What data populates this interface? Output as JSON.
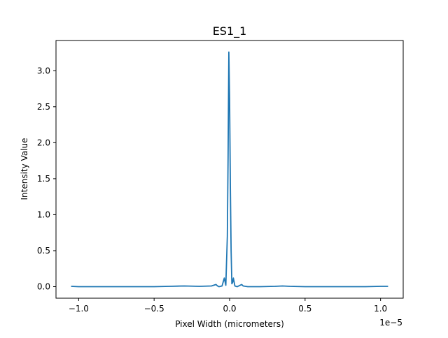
{
  "chart_data": {
    "type": "line",
    "title": "ES1_1",
    "xlabel": "Pixel Width (micrometers)",
    "ylabel": "Intensity Value",
    "x_offset_text": "1e−5",
    "xlim": [
      -1.15e-05,
      1.15e-05
    ],
    "ylim": [
      -0.16,
      3.42
    ],
    "x_ticks": [
      {
        "value": -1e-05,
        "label": "−1.0"
      },
      {
        "value": -5e-06,
        "label": "−0.5"
      },
      {
        "value": 0.0,
        "label": "0.0"
      },
      {
        "value": 5e-06,
        "label": "0.5"
      },
      {
        "value": 1e-05,
        "label": "1.0"
      }
    ],
    "y_ticks": [
      {
        "value": 0.0,
        "label": "0.0"
      },
      {
        "value": 0.5,
        "label": "0.5"
      },
      {
        "value": 1.0,
        "label": "1.0"
      },
      {
        "value": 1.5,
        "label": "1.5"
      },
      {
        "value": 2.0,
        "label": "2.0"
      },
      {
        "value": 2.5,
        "label": "2.5"
      },
      {
        "value": 3.0,
        "label": "3.0"
      }
    ],
    "grid": false,
    "series": [
      {
        "color": "#1f77b4",
        "x": [
          -1.05e-05,
          -1e-05,
          -9e-06,
          -8e-06,
          -7e-06,
          -6e-06,
          -5e-06,
          -4e-06,
          -3e-06,
          -2e-06,
          -1.2e-06,
          -9e-07,
          -8e-07,
          -7e-07,
          -5e-07,
          -3.5e-07,
          -2.5e-07,
          -1.5e-07,
          -1e-07,
          -5e-08,
          0.0,
          5e-08,
          1e-07,
          1.5e-07,
          2e-07,
          2.5e-07,
          3.5e-07,
          5e-07,
          7e-07,
          8e-07,
          9e-07,
          1.2e-06,
          2e-06,
          3e-06,
          3.5e-06,
          4e-06,
          5e-06,
          6e-06,
          7e-06,
          8e-06,
          9e-06,
          1e-05,
          1.05e-05
        ],
        "y": [
          0.005,
          0.0,
          0.0,
          0.0,
          0.0,
          0.0,
          0.0,
          0.005,
          0.01,
          0.005,
          0.01,
          0.03,
          0.01,
          0.0,
          0.01,
          0.12,
          0.02,
          0.7,
          1.8,
          3.26,
          2.6,
          1.4,
          0.5,
          0.04,
          0.06,
          0.12,
          0.01,
          0.0,
          0.02,
          0.03,
          0.01,
          0.0,
          0.0,
          0.005,
          0.01,
          0.005,
          0.0,
          0.0,
          0.0,
          0.0,
          0.0,
          0.005,
          0.005
        ]
      }
    ]
  }
}
